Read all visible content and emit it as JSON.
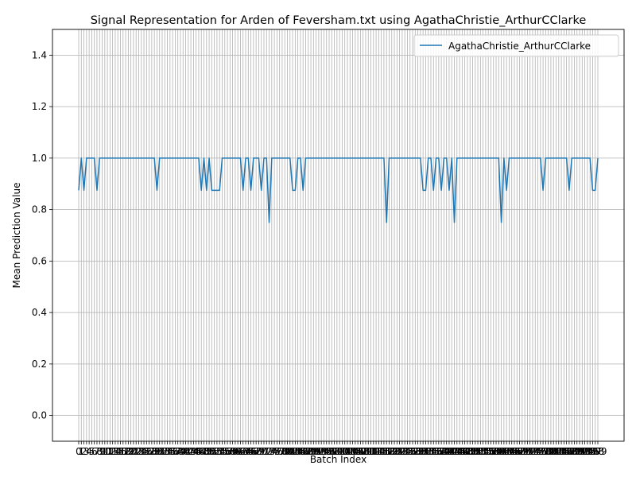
{
  "chart_data": {
    "type": "line",
    "title": "Signal Representation for Arden of Feversham.txt using AgathaChristie_ArthurCClarke",
    "xlabel": "Batch Index",
    "ylabel": "Mean Prediction Value",
    "ylim": [
      -0.1,
      1.5
    ],
    "yticks": [
      "0.0",
      "0.2",
      "0.4",
      "0.6",
      "0.8",
      "1.0",
      "1.2",
      "1.4"
    ],
    "grid": true,
    "legend_position": "top-right",
    "colors": {
      "series": "#1f77b4",
      "grid": "#b0b0b0"
    },
    "series": [
      {
        "name": "AgathaChristie_ArthurCClarke",
        "values": [
          0.875,
          1,
          0.875,
          1,
          1,
          1,
          1,
          0.875,
          1,
          1,
          1,
          1,
          1,
          1,
          1,
          1,
          1,
          1,
          1,
          1,
          1,
          1,
          1,
          1,
          1,
          1,
          1,
          1,
          1,
          1,
          0.875,
          1,
          1,
          1,
          1,
          1,
          1,
          1,
          1,
          1,
          1,
          1,
          1,
          1,
          1,
          1,
          1,
          0.875,
          1,
          0.875,
          1,
          0.875,
          0.875,
          0.875,
          0.875,
          1,
          1,
          1,
          1,
          1,
          1,
          1,
          1,
          0.875,
          1,
          1,
          0.875,
          1,
          1,
          1,
          0.875,
          1,
          1,
          0.75,
          1,
          1,
          1,
          1,
          1,
          1,
          1,
          1,
          0.875,
          0.875,
          1,
          1,
          0.875,
          1,
          1,
          1,
          1,
          1,
          1,
          1,
          1,
          1,
          1,
          1,
          1,
          1,
          1,
          1,
          1,
          1,
          1,
          1,
          1,
          1,
          1,
          1,
          1,
          1,
          1,
          1,
          1,
          1,
          1,
          1,
          0.75,
          1,
          1,
          1,
          1,
          1,
          1,
          1,
          1,
          1,
          1,
          1,
          1,
          1,
          0.875,
          0.875,
          1,
          1,
          0.875,
          1,
          1,
          0.875,
          1,
          1,
          0.875,
          1,
          0.75,
          1,
          1,
          1,
          1,
          1,
          1,
          1,
          1,
          1,
          1,
          1,
          1,
          1,
          1,
          1,
          1,
          1,
          0.75,
          1,
          0.875,
          1,
          1,
          1,
          1,
          1,
          1,
          1,
          1,
          1,
          1,
          1,
          1,
          1,
          0.875,
          1,
          1,
          1,
          1,
          1,
          1,
          1,
          1,
          1,
          0.875,
          1,
          1,
          1,
          1,
          1,
          1,
          1,
          1,
          0.875,
          0.875,
          1
        ]
      }
    ]
  }
}
